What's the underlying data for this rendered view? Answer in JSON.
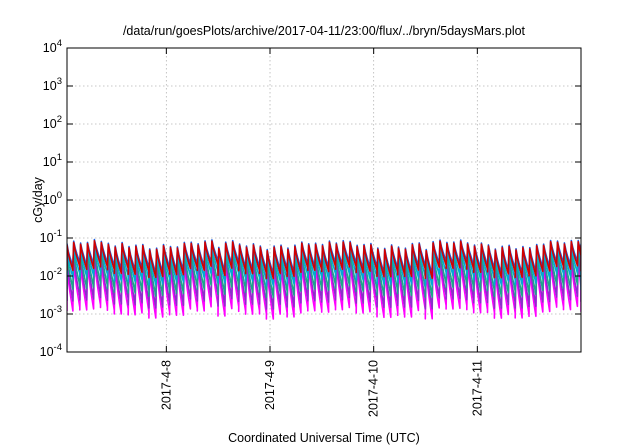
{
  "chart_data": {
    "type": "line",
    "title": "/data/run/goesPlots/archive/2017-04-11/23:00/flux/../bryn/5daysMars.plot",
    "xlabel": "Coordinated Universal Time (UTC)",
    "ylabel": "cGy/day",
    "y_scale": "log",
    "ylim_exponents": [
      -4,
      4
    ],
    "y_ticks": [
      {
        "base": "10",
        "exp": "4"
      },
      {
        "base": "10",
        "exp": "3"
      },
      {
        "base": "10",
        "exp": "2"
      },
      {
        "base": "10",
        "exp": "1"
      },
      {
        "base": "10",
        "exp": "0"
      },
      {
        "base": "10",
        "exp": "-1"
      },
      {
        "base": "10",
        "exp": "-2"
      },
      {
        "base": "10",
        "exp": "-3"
      },
      {
        "base": "10",
        "exp": "-4"
      }
    ],
    "x_range_days": [
      "2017-04-07T01:00",
      "2017-04-12T00:00"
    ],
    "x_ticks": [
      {
        "label": "2017-4-8",
        "value": "2017-04-08T00:00"
      },
      {
        "label": "2017-4-9",
        "value": "2017-04-09T00:00"
      },
      {
        "label": "2017-4-10",
        "value": "2017-04-10T00:00"
      },
      {
        "label": "2017-4-11",
        "value": "2017-04-11T00:00"
      }
    ],
    "grid": true,
    "legend": "none",
    "pattern": "sawtooth, period about 1.6 h; each series jumps to its peak then decays",
    "series": [
      {
        "color": "#d10000",
        "peak": 0.065,
        "trough": 0.014
      },
      {
        "color": "#1b5de0",
        "peak": 0.07,
        "trough": 0.018
      },
      {
        "color": "#00a9d6",
        "peak": 0.05,
        "trough": 0.009
      },
      {
        "color": "#1aa88a",
        "peak": 0.04,
        "trough": 0.0045
      },
      {
        "color": "#8c2fc9",
        "peak": 0.03,
        "trough": 0.0022
      },
      {
        "color": "#ff00ff",
        "peak": 0.02,
        "trough": 0.0012
      }
    ]
  }
}
